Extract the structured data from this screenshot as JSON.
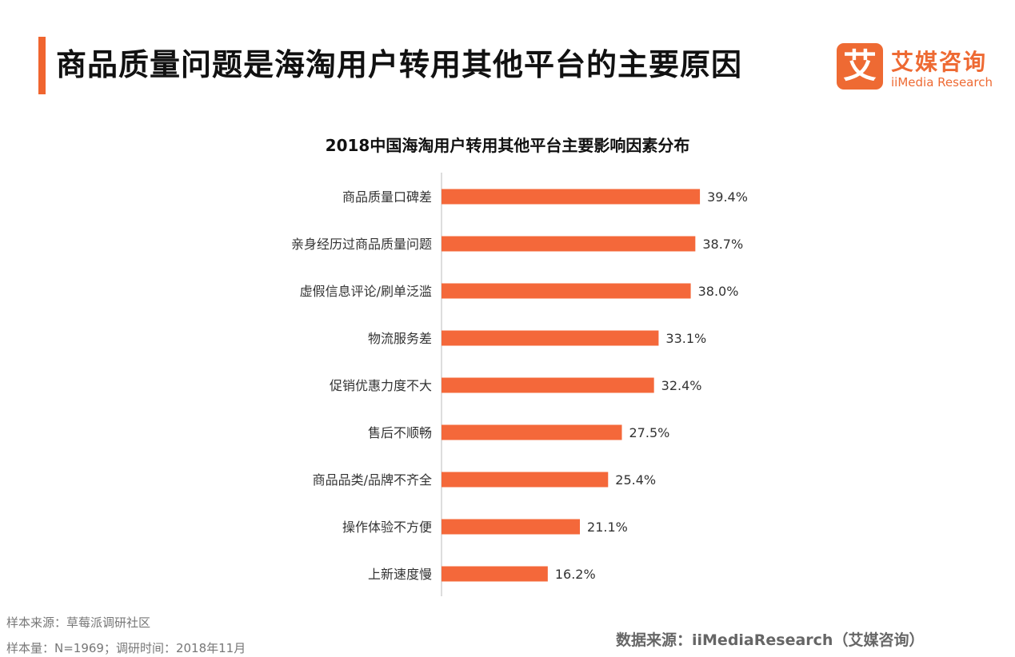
{
  "header": {
    "title": "商品质量问题是海淘用户转用其他平台的主要原因"
  },
  "logo": {
    "mark": "艾",
    "name_cn": "艾媒咨询",
    "name_en": "iiMedia Research",
    "color": "#ee6a33"
  },
  "chart_data": {
    "type": "bar",
    "orientation": "horizontal",
    "title": "2018中国海淘用户转用其他平台主要影响因素分布",
    "categories": [
      "商品质量口碑差",
      "亲身经历过商品质量问题",
      "虚假信息评论/刷单泛滥",
      "物流服务差",
      "促销优惠力度不大",
      "售后不顺畅",
      "商品品类/品牌不齐全",
      "操作体验不方便",
      "上新速度慢"
    ],
    "values": [
      39.4,
      38.7,
      38.0,
      33.1,
      32.4,
      27.5,
      25.4,
      21.1,
      16.2
    ],
    "data_labels": [
      "39.4%",
      "38.7%",
      "38.0%",
      "33.1%",
      "32.4%",
      "27.5%",
      "25.4%",
      "21.1%",
      "16.2%"
    ],
    "unit": "%",
    "xlim": [
      0,
      40
    ],
    "grid": false,
    "bar_color": "#f4683a"
  },
  "footer": {
    "sample_source": "样本来源：草莓派调研社区",
    "sample_size": "样本量：N=1969；调研时间：2018年11月",
    "data_source": "数据来源：iiMediaResearch（艾媒咨询）"
  }
}
